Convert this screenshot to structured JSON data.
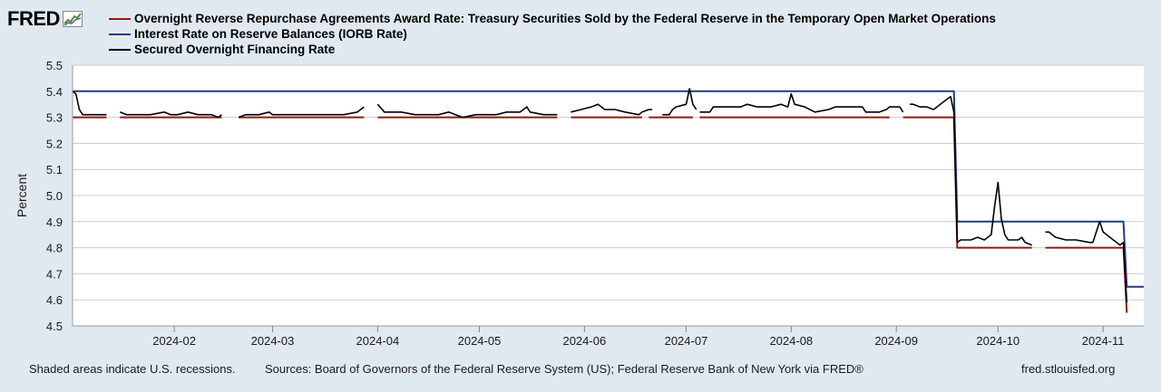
{
  "brand": {
    "logo_text": "FRED",
    "logo_icon": "line-chart-icon"
  },
  "chart_data": {
    "type": "line",
    "title": "",
    "xlabel": "",
    "ylabel": "Percent",
    "ylim": [
      4.5,
      5.5
    ],
    "yticks": [
      4.5,
      4.6,
      4.7,
      4.8,
      4.9,
      5.0,
      5.1,
      5.2,
      5.3,
      5.4,
      5.5
    ],
    "xlim": [
      "2024-01-02",
      "2024-11-13"
    ],
    "xticks": [
      {
        "date": "2024-02-01",
        "label": "2024-02"
      },
      {
        "date": "2024-03-01",
        "label": "2024-03"
      },
      {
        "date": "2024-04-01",
        "label": "2024-04"
      },
      {
        "date": "2024-05-01",
        "label": "2024-05"
      },
      {
        "date": "2024-06-01",
        "label": "2024-06"
      },
      {
        "date": "2024-07-01",
        "label": "2024-07"
      },
      {
        "date": "2024-08-01",
        "label": "2024-08"
      },
      {
        "date": "2024-09-01",
        "label": "2024-09"
      },
      {
        "date": "2024-10-01",
        "label": "2024-10"
      },
      {
        "date": "2024-11-01",
        "label": "2024-11"
      }
    ],
    "grid": true,
    "series": [
      {
        "name": "Overnight Reverse Repurchase Agreements Award Rate: Treasury Securities Sold by the Federal Reserve in the Temporary Open Market Operations",
        "color": "#8c1c13",
        "segments": [
          [
            [
              "2024-01-02",
              5.3
            ],
            [
              "2024-01-12",
              5.3
            ]
          ],
          [
            [
              "2024-01-16",
              5.3
            ],
            [
              "2024-02-15",
              5.3
            ]
          ],
          [
            [
              "2024-02-20",
              5.3
            ],
            [
              "2024-03-28",
              5.3
            ]
          ],
          [
            [
              "2024-04-01",
              5.3
            ],
            [
              "2024-05-24",
              5.3
            ]
          ],
          [
            [
              "2024-05-28",
              5.3
            ],
            [
              "2024-06-18",
              5.3
            ]
          ],
          [
            [
              "2024-06-20",
              5.3
            ],
            [
              "2024-07-03",
              5.3
            ]
          ],
          [
            [
              "2024-07-05",
              5.3
            ],
            [
              "2024-08-30",
              5.3
            ]
          ],
          [
            [
              "2024-09-03",
              5.3
            ],
            [
              "2024-09-18",
              5.3
            ],
            [
              "2024-09-19",
              4.8
            ],
            [
              "2024-10-11",
              4.8
            ]
          ],
          [
            [
              "2024-10-15",
              4.8
            ],
            [
              "2024-11-07",
              4.8
            ],
            [
              "2024-11-08",
              4.55
            ]
          ]
        ]
      },
      {
        "name": "Interest Rate on Reserve Balances (IORB Rate)",
        "color": "#1f3d7a",
        "segments": [
          [
            [
              "2024-01-02",
              5.4
            ],
            [
              "2024-09-18",
              5.4
            ],
            [
              "2024-09-19",
              4.9
            ],
            [
              "2024-11-07",
              4.9
            ],
            [
              "2024-11-08",
              4.65
            ],
            [
              "2024-11-13",
              4.65
            ]
          ]
        ]
      },
      {
        "name": "Secured Overnight Financing Rate",
        "color": "#000000",
        "segments": [
          [
            [
              "2024-01-02",
              5.4
            ],
            [
              "2024-01-03",
              5.39
            ],
            [
              "2024-01-04",
              5.33
            ],
            [
              "2024-01-05",
              5.31
            ],
            [
              "2024-01-08",
              5.31
            ],
            [
              "2024-01-10",
              5.31
            ],
            [
              "2024-01-12",
              5.31
            ]
          ],
          [
            [
              "2024-01-16",
              5.32
            ],
            [
              "2024-01-18",
              5.31
            ],
            [
              "2024-01-22",
              5.31
            ],
            [
              "2024-01-25",
              5.31
            ],
            [
              "2024-01-29",
              5.32
            ],
            [
              "2024-01-31",
              5.31
            ],
            [
              "2024-02-02",
              5.31
            ],
            [
              "2024-02-05",
              5.32
            ],
            [
              "2024-02-08",
              5.31
            ],
            [
              "2024-02-12",
              5.31
            ],
            [
              "2024-02-14",
              5.3
            ],
            [
              "2024-02-15",
              5.31
            ]
          ],
          [
            [
              "2024-02-20",
              5.3
            ],
            [
              "2024-02-22",
              5.31
            ],
            [
              "2024-02-26",
              5.31
            ],
            [
              "2024-02-29",
              5.32
            ],
            [
              "2024-03-01",
              5.31
            ],
            [
              "2024-03-08",
              5.31
            ],
            [
              "2024-03-15",
              5.31
            ],
            [
              "2024-03-22",
              5.31
            ],
            [
              "2024-03-26",
              5.32
            ],
            [
              "2024-03-28",
              5.34
            ]
          ],
          [
            [
              "2024-04-01",
              5.35
            ],
            [
              "2024-04-03",
              5.32
            ],
            [
              "2024-04-08",
              5.32
            ],
            [
              "2024-04-12",
              5.31
            ],
            [
              "2024-04-16",
              5.31
            ],
            [
              "2024-04-19",
              5.31
            ],
            [
              "2024-04-22",
              5.32
            ],
            [
              "2024-04-24",
              5.31
            ],
            [
              "2024-04-26",
              5.3
            ],
            [
              "2024-04-30",
              5.31
            ],
            [
              "2024-05-03",
              5.31
            ],
            [
              "2024-05-06",
              5.31
            ],
            [
              "2024-05-09",
              5.32
            ],
            [
              "2024-05-13",
              5.32
            ],
            [
              "2024-05-15",
              5.34
            ],
            [
              "2024-05-16",
              5.32
            ],
            [
              "2024-05-20",
              5.31
            ],
            [
              "2024-05-24",
              5.31
            ]
          ],
          [
            [
              "2024-05-28",
              5.32
            ],
            [
              "2024-05-31",
              5.33
            ],
            [
              "2024-06-03",
              5.34
            ],
            [
              "2024-06-05",
              5.35
            ],
            [
              "2024-06-07",
              5.33
            ],
            [
              "2024-06-10",
              5.33
            ],
            [
              "2024-06-13",
              5.32
            ],
            [
              "2024-06-17",
              5.31
            ],
            [
              "2024-06-18",
              5.32
            ],
            [
              "2024-06-20",
              5.33
            ],
            [
              "2024-06-21",
              5.33
            ]
          ],
          [
            [
              "2024-06-24",
              5.31
            ],
            [
              "2024-06-26",
              5.31
            ],
            [
              "2024-06-27",
              5.33
            ],
            [
              "2024-06-28",
              5.34
            ],
            [
              "2024-07-01",
              5.35
            ],
            [
              "2024-07-02",
              5.41
            ],
            [
              "2024-07-03",
              5.35
            ],
            [
              "2024-07-04",
              5.33
            ]
          ],
          [
            [
              "2024-07-05",
              5.32
            ],
            [
              "2024-07-08",
              5.32
            ],
            [
              "2024-07-09",
              5.34
            ],
            [
              "2024-07-12",
              5.34
            ],
            [
              "2024-07-15",
              5.34
            ],
            [
              "2024-07-17",
              5.34
            ],
            [
              "2024-07-19",
              5.35
            ],
            [
              "2024-07-22",
              5.34
            ],
            [
              "2024-07-26",
              5.34
            ],
            [
              "2024-07-29",
              5.35
            ],
            [
              "2024-07-31",
              5.34
            ],
            [
              "2024-08-01",
              5.39
            ],
            [
              "2024-08-02",
              5.35
            ],
            [
              "2024-08-05",
              5.34
            ],
            [
              "2024-08-08",
              5.32
            ],
            [
              "2024-08-12",
              5.33
            ],
            [
              "2024-08-14",
              5.34
            ],
            [
              "2024-08-19",
              5.34
            ],
            [
              "2024-08-22",
              5.34
            ],
            [
              "2024-08-23",
              5.32
            ],
            [
              "2024-08-27",
              5.32
            ],
            [
              "2024-08-29",
              5.33
            ],
            [
              "2024-08-30",
              5.34
            ],
            [
              "2024-09-02",
              5.34
            ],
            [
              "2024-09-03",
              5.32
            ]
          ],
          [
            [
              "2024-09-05",
              5.35
            ],
            [
              "2024-09-06",
              5.35
            ],
            [
              "2024-09-08",
              5.34
            ],
            [
              "2024-09-10",
              5.34
            ],
            [
              "2024-09-12",
              5.33
            ],
            [
              "2024-09-13",
              5.34
            ],
            [
              "2024-09-15",
              5.36
            ],
            [
              "2024-09-17",
              5.38
            ],
            [
              "2024-09-18",
              5.32
            ],
            [
              "2024-09-19",
              4.82
            ],
            [
              "2024-09-20",
              4.83
            ],
            [
              "2024-09-23",
              4.83
            ],
            [
              "2024-09-25",
              4.84
            ],
            [
              "2024-09-27",
              4.83
            ],
            [
              "2024-09-29",
              4.85
            ],
            [
              "2024-09-30",
              4.96
            ],
            [
              "2024-10-01",
              5.05
            ],
            [
              "2024-10-02",
              4.91
            ],
            [
              "2024-10-03",
              4.85
            ],
            [
              "2024-10-04",
              4.83
            ],
            [
              "2024-10-07",
              4.83
            ],
            [
              "2024-10-08",
              4.84
            ],
            [
              "2024-10-09",
              4.82
            ],
            [
              "2024-10-11",
              4.81
            ]
          ],
          [
            [
              "2024-10-15",
              4.86
            ],
            [
              "2024-10-16",
              4.86
            ],
            [
              "2024-10-17",
              4.85
            ],
            [
              "2024-10-18",
              4.84
            ],
            [
              "2024-10-21",
              4.83
            ],
            [
              "2024-10-22",
              4.83
            ],
            [
              "2024-10-24",
              4.83
            ],
            [
              "2024-10-28",
              4.82
            ],
            [
              "2024-10-29",
              4.82
            ],
            [
              "2024-10-31",
              4.9
            ],
            [
              "2024-11-01",
              4.86
            ],
            [
              "2024-11-04",
              4.83
            ],
            [
              "2024-11-05",
              4.82
            ],
            [
              "2024-11-06",
              4.81
            ],
            [
              "2024-11-07",
              4.82
            ],
            [
              "2024-11-08",
              4.59
            ]
          ]
        ]
      }
    ]
  },
  "footer": {
    "recession_note": "Shaded areas indicate U.S. recessions.",
    "sources": "Sources: Board of Governors of the Federal Reserve System (US); Federal Reserve Bank of New York via FRED®",
    "url": "fred.stlouisfed.org"
  }
}
